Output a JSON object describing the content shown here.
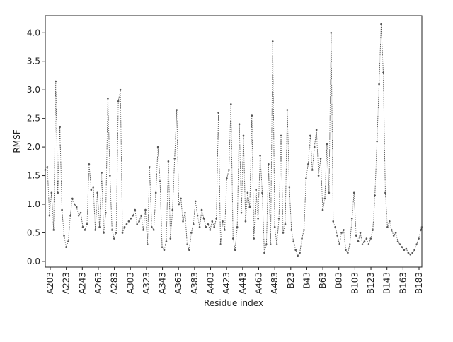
{
  "chart_data": {
    "type": "line",
    "title": "",
    "xlabel": "Residue index",
    "ylabel": "RMSF",
    "ylim": [
      -0.1,
      4.3
    ],
    "yticks": [
      0.0,
      0.5,
      1.0,
      1.5,
      2.0,
      2.5,
      3.0,
      3.5,
      4.0
    ],
    "ytick_labels": [
      "0.0",
      "0.5",
      "1.0",
      "1.5",
      "2.0",
      "2.5",
      "3.0",
      "3.5",
      "4.0"
    ],
    "xtick_labels": [
      "A203",
      "A223",
      "A243",
      "A263",
      "A283",
      "A303",
      "A323",
      "A343",
      "A363",
      "A383",
      "A403",
      "A423",
      "A443",
      "A463",
      "A483",
      "B23",
      "B43",
      "B63",
      "B83",
      "B103",
      "B123",
      "B143",
      "B163",
      "B183"
    ],
    "grid": false,
    "legend": "none",
    "series": [
      {
        "color": "#555555",
        "line_style": "dotted",
        "marker": "small-dot",
        "points": [
          [
            0,
            1.6
          ],
          [
            2,
            1.65
          ],
          [
            4,
            0.8
          ],
          [
            6,
            1.2
          ],
          [
            8,
            0.55
          ],
          [
            10,
            3.15
          ],
          [
            12,
            1.2
          ],
          [
            14,
            2.35
          ],
          [
            16,
            0.9
          ],
          [
            18,
            0.45
          ],
          [
            20,
            0.25
          ],
          [
            22,
            0.35
          ],
          [
            24,
            0.8
          ],
          [
            26,
            1.1
          ],
          [
            28,
            1.0
          ],
          [
            30,
            0.95
          ],
          [
            32,
            0.8
          ],
          [
            34,
            0.85
          ],
          [
            36,
            0.6
          ],
          [
            38,
            0.55
          ],
          [
            40,
            0.65
          ],
          [
            42,
            1.7
          ],
          [
            44,
            1.25
          ],
          [
            46,
            1.3
          ],
          [
            48,
            0.55
          ],
          [
            50,
            1.2
          ],
          [
            52,
            0.6
          ],
          [
            54,
            1.55
          ],
          [
            56,
            0.5
          ],
          [
            58,
            0.85
          ],
          [
            60,
            2.85
          ],
          [
            62,
            1.5
          ],
          [
            64,
            0.55
          ],
          [
            66,
            0.4
          ],
          [
            68,
            0.5
          ],
          [
            70,
            2.8
          ],
          [
            72,
            3.0
          ],
          [
            74,
            0.5
          ],
          [
            76,
            0.6
          ],
          [
            78,
            0.65
          ],
          [
            80,
            0.7
          ],
          [
            82,
            0.75
          ],
          [
            84,
            0.8
          ],
          [
            86,
            0.9
          ],
          [
            88,
            0.65
          ],
          [
            90,
            0.7
          ],
          [
            92,
            0.8
          ],
          [
            94,
            0.55
          ],
          [
            96,
            0.9
          ],
          [
            98,
            0.3
          ],
          [
            100,
            1.65
          ],
          [
            102,
            0.6
          ],
          [
            104,
            0.55
          ],
          [
            106,
            1.2
          ],
          [
            108,
            2.0
          ],
          [
            110,
            1.4
          ],
          [
            112,
            0.25
          ],
          [
            114,
            0.2
          ],
          [
            116,
            0.35
          ],
          [
            118,
            1.75
          ],
          [
            120,
            0.4
          ],
          [
            122,
            0.9
          ],
          [
            124,
            1.8
          ],
          [
            126,
            2.65
          ],
          [
            128,
            1.0
          ],
          [
            130,
            1.1
          ],
          [
            132,
            0.7
          ],
          [
            134,
            0.85
          ],
          [
            136,
            0.3
          ],
          [
            138,
            0.2
          ],
          [
            140,
            0.5
          ],
          [
            142,
            0.65
          ],
          [
            144,
            1.05
          ],
          [
            146,
            0.8
          ],
          [
            148,
            0.6
          ],
          [
            150,
            0.9
          ],
          [
            152,
            0.75
          ],
          [
            154,
            0.6
          ],
          [
            156,
            0.65
          ],
          [
            158,
            0.55
          ],
          [
            160,
            0.7
          ],
          [
            162,
            0.6
          ],
          [
            164,
            0.75
          ],
          [
            166,
            2.6
          ],
          [
            168,
            0.3
          ],
          [
            170,
            0.7
          ],
          [
            172,
            0.55
          ],
          [
            174,
            1.45
          ],
          [
            176,
            1.6
          ],
          [
            178,
            2.75
          ],
          [
            180,
            0.4
          ],
          [
            182,
            0.2
          ],
          [
            184,
            0.6
          ],
          [
            186,
            2.4
          ],
          [
            188,
            0.85
          ],
          [
            190,
            2.2
          ],
          [
            192,
            0.7
          ],
          [
            194,
            1.2
          ],
          [
            196,
            0.95
          ],
          [
            198,
            2.55
          ],
          [
            200,
            0.4
          ],
          [
            202,
            1.25
          ],
          [
            204,
            0.75
          ],
          [
            206,
            1.85
          ],
          [
            208,
            1.2
          ],
          [
            210,
            0.15
          ],
          [
            212,
            0.3
          ],
          [
            214,
            1.7
          ],
          [
            216,
            0.3
          ],
          [
            218,
            3.85
          ],
          [
            220,
            0.6
          ],
          [
            222,
            0.3
          ],
          [
            224,
            0.75
          ],
          [
            226,
            2.2
          ],
          [
            228,
            0.5
          ],
          [
            230,
            0.65
          ],
          [
            232,
            2.65
          ],
          [
            234,
            1.3
          ],
          [
            236,
            0.55
          ],
          [
            238,
            0.35
          ],
          [
            240,
            0.2
          ],
          [
            242,
            0.1
          ],
          [
            244,
            0.15
          ],
          [
            246,
            0.4
          ],
          [
            248,
            0.55
          ],
          [
            250,
            1.45
          ],
          [
            252,
            1.7
          ],
          [
            254,
            2.2
          ],
          [
            256,
            1.6
          ],
          [
            258,
            2.0
          ],
          [
            260,
            2.3
          ],
          [
            262,
            1.5
          ],
          [
            264,
            1.8
          ],
          [
            266,
            0.9
          ],
          [
            268,
            1.1
          ],
          [
            270,
            2.05
          ],
          [
            272,
            1.2
          ],
          [
            274,
            4.0
          ],
          [
            276,
            0.7
          ],
          [
            278,
            0.6
          ],
          [
            280,
            0.45
          ],
          [
            282,
            0.3
          ],
          [
            284,
            0.5
          ],
          [
            286,
            0.55
          ],
          [
            288,
            0.2
          ],
          [
            290,
            0.15
          ],
          [
            292,
            0.3
          ],
          [
            294,
            0.75
          ],
          [
            296,
            1.2
          ],
          [
            298,
            0.45
          ],
          [
            300,
            0.35
          ],
          [
            302,
            0.5
          ],
          [
            304,
            0.3
          ],
          [
            306,
            0.35
          ],
          [
            308,
            0.4
          ],
          [
            310,
            0.3
          ],
          [
            312,
            0.4
          ],
          [
            314,
            0.55
          ],
          [
            316,
            1.15
          ],
          [
            318,
            2.1
          ],
          [
            320,
            3.1
          ],
          [
            322,
            4.15
          ],
          [
            324,
            3.3
          ],
          [
            326,
            1.2
          ],
          [
            328,
            0.6
          ],
          [
            330,
            0.7
          ],
          [
            332,
            0.55
          ],
          [
            334,
            0.45
          ],
          [
            336,
            0.5
          ],
          [
            338,
            0.35
          ],
          [
            340,
            0.3
          ],
          [
            342,
            0.25
          ],
          [
            344,
            0.2
          ],
          [
            346,
            0.22
          ],
          [
            348,
            0.15
          ],
          [
            350,
            0.12
          ],
          [
            352,
            0.15
          ],
          [
            354,
            0.2
          ],
          [
            356,
            0.3
          ],
          [
            358,
            0.4
          ],
          [
            360,
            0.55
          ],
          [
            361,
            0.6
          ]
        ]
      }
    ],
    "x_domain": [
      0,
      361
    ]
  }
}
